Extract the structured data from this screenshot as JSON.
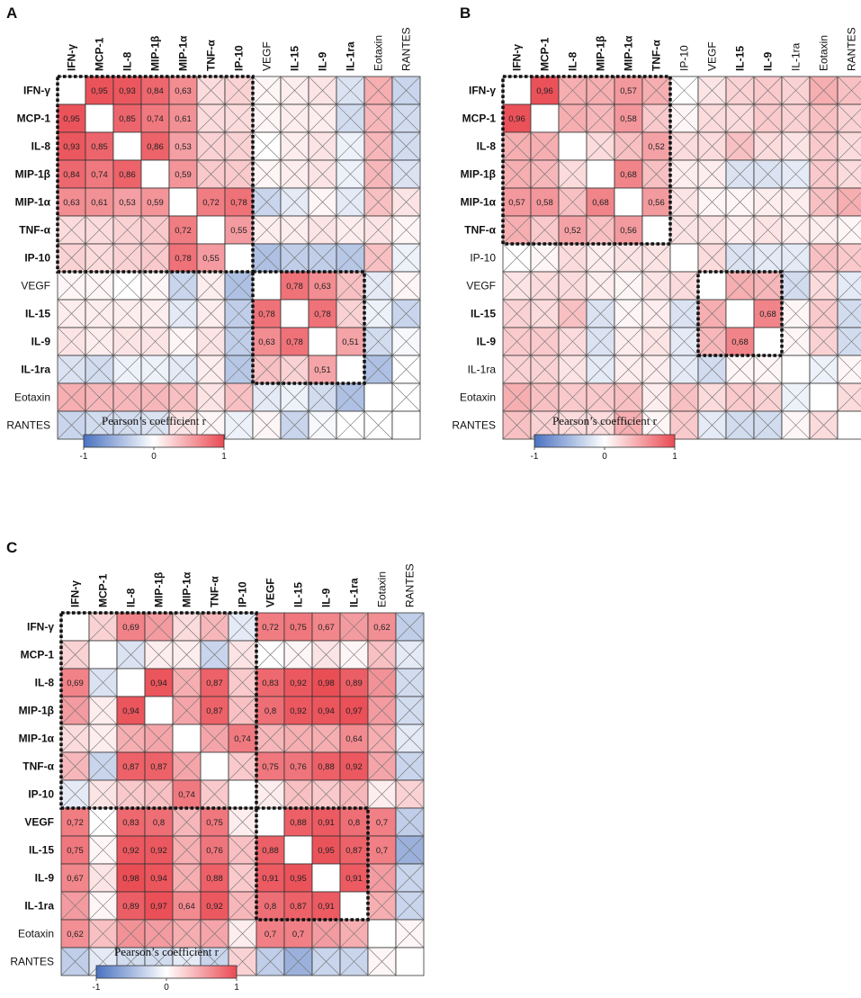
{
  "chart_data": [
    {
      "type": "heatmap",
      "panel_label": "A",
      "variables": [
        "IFN-γ",
        "MCP-1",
        "IL-8",
        "MIP-1β",
        "MIP-1α",
        "TNF-α",
        "IP-10",
        "VEGF",
        "IL-15",
        "IL-9",
        "IL-1ra",
        "Eotaxin",
        "RANTES"
      ],
      "bold_variables": [
        "IFN-γ",
        "MCP-1",
        "IL-8",
        "MIP-1β",
        "MIP-1α",
        "TNF-α",
        "IP-10",
        "IL-15",
        "IL-9",
        "IL-1ra"
      ],
      "significant_pairs": [
        [
          "IFN-γ",
          "MCP-1",
          0.95
        ],
        [
          "IFN-γ",
          "IL-8",
          0.93
        ],
        [
          "IFN-γ",
          "MIP-1β",
          0.84
        ],
        [
          "IFN-γ",
          "MIP-1α",
          0.63
        ],
        [
          "MCP-1",
          "IL-8",
          0.85
        ],
        [
          "MCP-1",
          "MIP-1β",
          0.74
        ],
        [
          "MCP-1",
          "MIP-1α",
          0.61
        ],
        [
          "IL-8",
          "MIP-1β",
          0.86
        ],
        [
          "IL-8",
          "MIP-1α",
          0.53
        ],
        [
          "MIP-1β",
          "MIP-1α",
          0.59
        ],
        [
          "MIP-1α",
          "TNF-α",
          0.72
        ],
        [
          "MIP-1α",
          "IP-10",
          0.78
        ],
        [
          "TNF-α",
          "IP-10",
          0.55
        ],
        [
          "VEGF",
          "IL-15",
          0.78
        ],
        [
          "VEGF",
          "IL-9",
          0.63
        ],
        [
          "IL-15",
          "IL-9",
          0.78
        ],
        [
          "IL-9",
          "IL-1ra",
          0.51
        ]
      ],
      "nonsignificant_r": {
        "IFN-γ|TNF-α": 0.2,
        "IFN-γ|IP-10": 0.25,
        "IFN-γ|VEGF": 0.05,
        "IFN-γ|IL-15": 0.1,
        "IFN-γ|IL-9": 0.15,
        "IFN-γ|IL-1ra": -0.2,
        "IFN-γ|Eotaxin": 0.45,
        "IFN-γ|RANTES": -0.3,
        "MCP-1|TNF-α": 0.2,
        "MCP-1|IP-10": 0.2,
        "MCP-1|VEGF": 0.05,
        "MCP-1|IL-15": 0.1,
        "MCP-1|IL-9": 0.1,
        "MCP-1|IL-1ra": -0.25,
        "MCP-1|Eotaxin": 0.4,
        "MCP-1|RANTES": -0.25,
        "IL-8|TNF-α": 0.25,
        "IL-8|IP-10": 0.25,
        "IL-8|VEGF": 0.0,
        "IL-8|IL-15": 0.1,
        "IL-8|IL-9": 0.15,
        "IL-8|IL-1ra": -0.1,
        "IL-8|Eotaxin": 0.4,
        "IL-8|RANTES": -0.25,
        "MIP-1β|TNF-α": 0.3,
        "MIP-1β|IP-10": 0.3,
        "MIP-1β|VEGF": 0.05,
        "MIP-1β|IL-15": 0.1,
        "MIP-1β|IL-9": 0.15,
        "MIP-1β|IL-1ra": -0.1,
        "MIP-1β|Eotaxin": 0.4,
        "MIP-1β|RANTES": -0.2,
        "MIP-1α|VEGF": -0.3,
        "MIP-1α|IL-15": -0.15,
        "MIP-1α|IL-9": 0.05,
        "MIP-1α|IL-1ra": -0.15,
        "MIP-1α|Eotaxin": 0.35,
        "MIP-1α|RANTES": 0.15,
        "TNF-α|VEGF": 0.1,
        "TNF-α|IL-15": 0.1,
        "TNF-α|IL-9": 0.15,
        "TNF-α|IL-1ra": 0.1,
        "TNF-α|Eotaxin": 0.15,
        "TNF-α|RANTES": 0.05,
        "IP-10|VEGF": -0.45,
        "IP-10|IL-15": -0.35,
        "IP-10|IL-9": -0.35,
        "IP-10|IL-1ra": -0.4,
        "IP-10|Eotaxin": 0.35,
        "IP-10|RANTES": -0.1,
        "VEGF|IL-1ra": 0.35,
        "VEGF|Eotaxin": -0.15,
        "VEGF|RANTES": 0.05,
        "IL-15|IL-1ra": 0.25,
        "IL-15|Eotaxin": -0.1,
        "IL-15|RANTES": -0.3,
        "IL-9|Eotaxin": -0.25,
        "IL-9|RANTES": -0.05,
        "IL-1ra|Eotaxin": -0.45,
        "IL-1ra|RANTES": 0.0,
        "Eotaxin|RANTES": 0.0
      },
      "boxes": [
        [
          "IFN-γ",
          "IP-10"
        ],
        [
          "VEGF",
          "IL-1ra"
        ]
      ],
      "colorbar": {
        "title": "Pearson’s coefficient r",
        "min": -1,
        "max": 1,
        "ticks": [
          "-1",
          "0",
          "1"
        ]
      }
    },
    {
      "type": "heatmap",
      "panel_label": "B",
      "variables": [
        "IFN-γ",
        "MCP-1",
        "IL-8",
        "MIP-1β",
        "MIP-1α",
        "TNF-α",
        "IP-10",
        "VEGF",
        "IL-15",
        "IL-9",
        "IL-1ra",
        "Eotaxin",
        "RANTES"
      ],
      "bold_variables": [
        "IFN-γ",
        "MCP-1",
        "IL-8",
        "MIP-1β",
        "MIP-1α",
        "TNF-α",
        "IL-15",
        "IL-9"
      ],
      "significant_pairs": [
        [
          "IFN-γ",
          "MCP-1",
          0.96
        ],
        [
          "IFN-γ",
          "MIP-1α",
          0.57
        ],
        [
          "MCP-1",
          "MIP-1α",
          0.58
        ],
        [
          "IL-8",
          "TNF-α",
          0.52
        ],
        [
          "MIP-1β",
          "MIP-1α",
          0.68
        ],
        [
          "MIP-1α",
          "TNF-α",
          0.56
        ],
        [
          "IL-15",
          "IL-9",
          0.68
        ]
      ],
      "nonsignificant_r": {
        "IFN-γ|IL-8": 0.45,
        "IFN-γ|MIP-1β": 0.45,
        "IFN-γ|TNF-α": 0.45,
        "IFN-γ|IP-10": 0.0,
        "IFN-γ|VEGF": 0.15,
        "IFN-γ|IL-15": 0.25,
        "IFN-γ|IL-9": 0.3,
        "IFN-γ|IL-1ra": 0.25,
        "IFN-γ|Eotaxin": 0.45,
        "IFN-γ|RANTES": 0.35,
        "MCP-1|IL-8": 0.45,
        "MCP-1|MIP-1β": 0.4,
        "MCP-1|TNF-α": 0.3,
        "MCP-1|IP-10": 0.05,
        "MCP-1|VEGF": 0.2,
        "MCP-1|IL-15": 0.2,
        "MCP-1|IL-9": 0.3,
        "MCP-1|IL-1ra": 0.25,
        "MCP-1|Eotaxin": 0.35,
        "MCP-1|RANTES": 0.25,
        "IL-8|MIP-1β": 0.2,
        "IL-8|MIP-1α": 0.35,
        "IL-8|IP-10": 0.2,
        "IL-8|VEGF": 0.2,
        "IL-8|IL-15": 0.35,
        "IL-8|IL-9": 0.2,
        "IL-8|IL-1ra": 0.15,
        "IL-8|Eotaxin": 0.3,
        "IL-8|RANTES": 0.2,
        "MIP-1β|TNF-α": 0.35,
        "MIP-1β|IP-10": 0.1,
        "MIP-1β|VEGF": 0.1,
        "MIP-1β|IL-15": -0.2,
        "MIP-1β|IL-9": -0.2,
        "MIP-1β|IL-1ra": -0.15,
        "MIP-1β|Eotaxin": 0.3,
        "MIP-1β|RANTES": 0.2,
        "MIP-1α|IP-10": 0.15,
        "MIP-1α|VEGF": 0.05,
        "MIP-1α|IL-15": 0.05,
        "MIP-1α|IL-9": 0.1,
        "MIP-1α|IL-1ra": 0.1,
        "MIP-1α|Eotaxin": 0.35,
        "MIP-1α|RANTES": 0.45,
        "TNF-α|IP-10": 0.15,
        "TNF-α|VEGF": 0.15,
        "TNF-α|IL-15": 0.1,
        "TNF-α|IL-9": 0.15,
        "TNF-α|IL-1ra": 0.1,
        "TNF-α|Eotaxin": 0.1,
        "TNF-α|RANTES": 0.05,
        "IP-10|VEGF": 0.2,
        "IP-10|IL-15": -0.2,
        "IP-10|IL-9": -0.15,
        "IP-10|IL-1ra": -0.15,
        "IP-10|Eotaxin": 0.35,
        "IP-10|RANTES": 0.3,
        "VEGF|IL-15": 0.45,
        "VEGF|IL-9": 0.4,
        "VEGF|IL-1ra": -0.25,
        "VEGF|Eotaxin": 0.2,
        "VEGF|RANTES": -0.15,
        "IL-15|IL-1ra": 0.05,
        "IL-15|Eotaxin": 0.3,
        "IL-15|RANTES": -0.25,
        "IL-9|IL-1ra": 0.05,
        "IL-9|Eotaxin": 0.25,
        "IL-9|RANTES": -0.25,
        "IL-1ra|Eotaxin": -0.1,
        "IL-1ra|RANTES": 0.05,
        "Eotaxin|RANTES": 0.2
      },
      "boxes": [
        [
          "IFN-γ",
          "TNF-α"
        ],
        [
          "VEGF",
          "IL-9"
        ]
      ],
      "colorbar": {
        "title": "Pearson’s coefficient r",
        "min": -1,
        "max": 1,
        "ticks": [
          "-1",
          "0",
          "1"
        ]
      }
    },
    {
      "type": "heatmap",
      "panel_label": "C",
      "variables": [
        "IFN-γ",
        "MCP-1",
        "IL-8",
        "MIP-1β",
        "MIP-1α",
        "TNF-α",
        "IP-10",
        "VEGF",
        "IL-15",
        "IL-9",
        "IL-1ra",
        "Eotaxin",
        "RANTES"
      ],
      "bold_variables": [
        "IFN-γ",
        "MCP-1",
        "IL-8",
        "MIP-1β",
        "MIP-1α",
        "TNF-α",
        "IP-10",
        "VEGF",
        "IL-15",
        "IL-9",
        "IL-1ra"
      ],
      "significant_pairs": [
        [
          "IFN-γ",
          "IL-8",
          0.69
        ],
        [
          "IFN-γ",
          "VEGF",
          0.72
        ],
        [
          "IFN-γ",
          "IL-15",
          0.75
        ],
        [
          "IFN-γ",
          "IL-9",
          0.67
        ],
        [
          "IFN-γ",
          "Eotaxin",
          0.62
        ],
        [
          "IL-8",
          "MIP-1β",
          0.94
        ],
        [
          "IL-8",
          "TNF-α",
          0.87
        ],
        [
          "IL-8",
          "VEGF",
          0.83
        ],
        [
          "IL-8",
          "IL-15",
          0.92
        ],
        [
          "IL-8",
          "IL-9",
          0.98
        ],
        [
          "IL-8",
          "IL-1ra",
          0.89
        ],
        [
          "MIP-1β",
          "TNF-α",
          0.87
        ],
        [
          "MIP-1β",
          "VEGF",
          0.8
        ],
        [
          "MIP-1β",
          "IL-15",
          0.92
        ],
        [
          "MIP-1β",
          "IL-9",
          0.94
        ],
        [
          "MIP-1β",
          "IL-1ra",
          0.97
        ],
        [
          "MIP-1α",
          "IP-10",
          0.74
        ],
        [
          "MIP-1α",
          "IL-1ra",
          0.64
        ],
        [
          "TNF-α",
          "VEGF",
          0.75
        ],
        [
          "TNF-α",
          "IL-15",
          0.76
        ],
        [
          "TNF-α",
          "IL-9",
          0.88
        ],
        [
          "TNF-α",
          "IL-1ra",
          0.92
        ],
        [
          "VEGF",
          "IL-15",
          0.88
        ],
        [
          "VEGF",
          "IL-9",
          0.91
        ],
        [
          "VEGF",
          "IL-1ra",
          0.8
        ],
        [
          "VEGF",
          "Eotaxin",
          0.7
        ],
        [
          "IL-15",
          "IL-9",
          0.95
        ],
        [
          "IL-15",
          "IL-1ra",
          0.87
        ],
        [
          "IL-15",
          "Eotaxin",
          0.7
        ],
        [
          "IL-9",
          "IL-1ra",
          0.91
        ]
      ],
      "nonsignificant_r": {
        "IFN-γ|MCP-1": 0.25,
        "IFN-γ|MIP-1β": 0.55,
        "IFN-γ|MIP-1α": 0.2,
        "IFN-γ|TNF-α": 0.4,
        "IFN-γ|IP-10": -0.15,
        "IFN-γ|IL-1ra": 0.55,
        "IFN-γ|RANTES": -0.35,
        "MCP-1|IL-8": -0.2,
        "MCP-1|MIP-1β": 0.1,
        "MCP-1|MIP-1α": 0.1,
        "MCP-1|TNF-α": -0.3,
        "MCP-1|IP-10": 0.15,
        "MCP-1|VEGF": 0.0,
        "MCP-1|IL-15": 0.05,
        "MCP-1|IL-9": 0.15,
        "MCP-1|IL-1ra": 0.05,
        "MCP-1|Eotaxin": 0.35,
        "MCP-1|RANTES": -0.15,
        "IL-8|MIP-1α": 0.45,
        "IL-8|IP-10": 0.3,
        "IL-8|Eotaxin": 0.6,
        "IL-8|RANTES": -0.25,
        "MIP-1β|MIP-1α": 0.5,
        "MIP-1β|IP-10": 0.35,
        "MIP-1β|Eotaxin": 0.55,
        "MIP-1β|RANTES": -0.25,
        "MIP-1α|TNF-α": 0.5,
        "MIP-1α|VEGF": 0.4,
        "MIP-1α|IL-15": 0.45,
        "MIP-1α|IL-9": 0.45,
        "MIP-1α|Eotaxin": 0.45,
        "MIP-1α|RANTES": -0.15,
        "TNF-α|IP-10": 0.3,
        "TNF-α|Eotaxin": 0.5,
        "TNF-α|RANTES": -0.3,
        "IP-10|VEGF": 0.1,
        "IP-10|IL-15": 0.35,
        "IP-10|IL-9": 0.3,
        "IP-10|IL-1ra": 0.4,
        "IP-10|Eotaxin": 0.1,
        "IP-10|RANTES": 0.25,
        "VEGF|RANTES": -0.35,
        "IL-15|RANTES": -0.55,
        "IL-9|Eotaxin": 0.55,
        "IL-9|RANTES": -0.3,
        "IL-1ra|Eotaxin": 0.45,
        "IL-1ra|RANTES": -0.3,
        "Eotaxin|RANTES": 0.05
      },
      "boxes": [
        [
          "IFN-γ",
          "IP-10"
        ],
        [
          "VEGF",
          "IL-1ra"
        ]
      ],
      "colorbar": {
        "title": "Pearson’s coefficient r",
        "min": -1,
        "max": 1,
        "ticks": [
          "-1",
          "0",
          "1"
        ]
      }
    }
  ]
}
